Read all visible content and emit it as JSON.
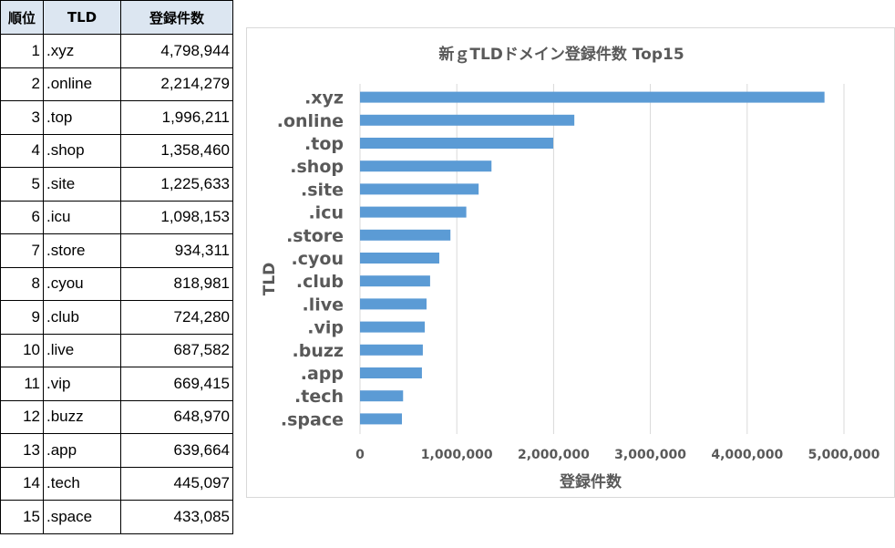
{
  "table": {
    "headers": [
      "順位",
      "TLD",
      "登録件数"
    ],
    "rows": [
      {
        "rank": "1",
        "tld": ".xyz",
        "count": "4,798,944"
      },
      {
        "rank": "2",
        "tld": ".online",
        "count": "2,214,279"
      },
      {
        "rank": "3",
        "tld": ".top",
        "count": "1,996,211"
      },
      {
        "rank": "4",
        "tld": ".shop",
        "count": "1,358,460"
      },
      {
        "rank": "5",
        "tld": ".site",
        "count": "1,225,633"
      },
      {
        "rank": "6",
        "tld": ".icu",
        "count": "1,098,153"
      },
      {
        "rank": "7",
        "tld": ".store",
        "count": "934,311"
      },
      {
        "rank": "8",
        "tld": ".cyou",
        "count": "818,981"
      },
      {
        "rank": "9",
        "tld": ".club",
        "count": "724,280"
      },
      {
        "rank": "10",
        "tld": ".live",
        "count": "687,582"
      },
      {
        "rank": "11",
        "tld": ".vip",
        "count": "669,415"
      },
      {
        "rank": "12",
        "tld": ".buzz",
        "count": "648,970"
      },
      {
        "rank": "13",
        "tld": ".app",
        "count": "639,664"
      },
      {
        "rank": "14",
        "tld": ".tech",
        "count": "445,097"
      },
      {
        "rank": "15",
        "tld": ".space",
        "count": "433,085"
      }
    ],
    "header_bg": "#dce6f1"
  },
  "chart_data": {
    "type": "bar",
    "orientation": "horizontal",
    "title": "新ｇTLDドメイン登録件数 Top15",
    "xlabel": "登録件数",
    "ylabel": "TLD",
    "categories": [
      ".xyz",
      ".online",
      ".top",
      ".shop",
      ".site",
      ".icu",
      ".store",
      ".cyou",
      ".club",
      ".live",
      ".vip",
      ".buzz",
      ".app",
      ".tech",
      ".space"
    ],
    "values": [
      4798944,
      2214279,
      1996211,
      1358460,
      1225633,
      1098153,
      934311,
      818981,
      724280,
      687582,
      669415,
      648970,
      639664,
      445097,
      433085
    ],
    "xlim": [
      0,
      5000000
    ],
    "xticks": [
      0,
      1000000,
      2000000,
      3000000,
      4000000,
      5000000
    ],
    "xtick_labels": [
      "0",
      "1,000,000",
      "2,000,000",
      "3,000,000",
      "4,000,000",
      "5,000,000"
    ],
    "grid": true,
    "legend": "none",
    "bar_color": "#5b9bd5"
  }
}
